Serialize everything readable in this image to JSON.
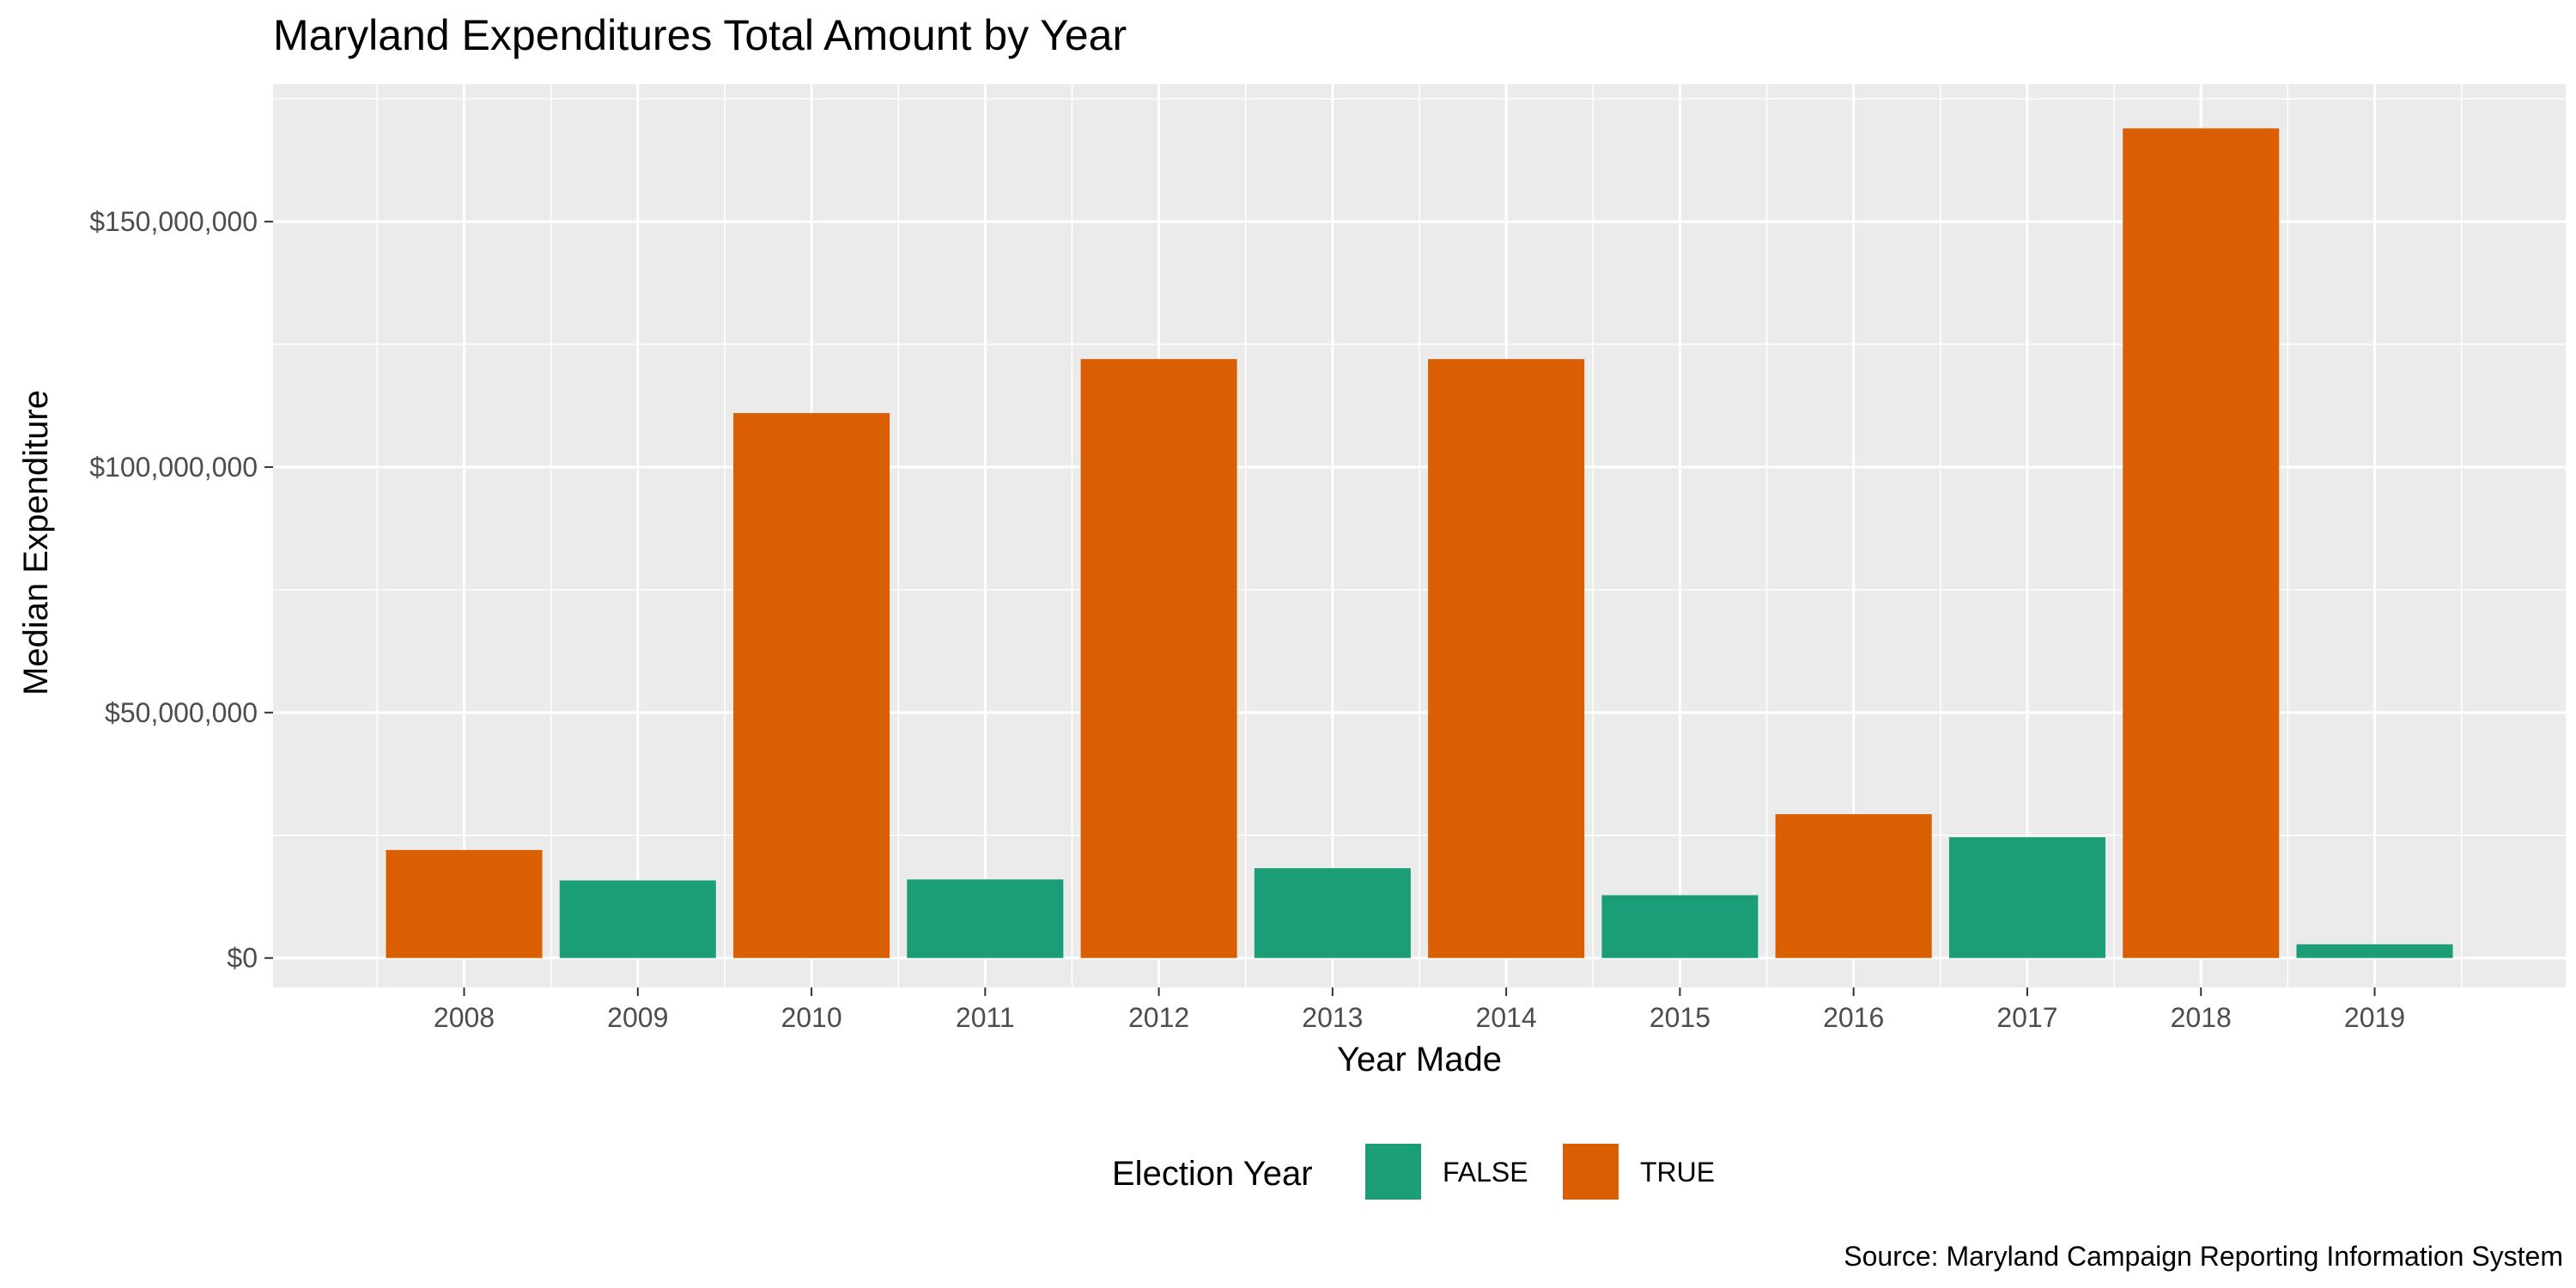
{
  "chart_data": {
    "type": "bar",
    "title": "Maryland Expenditures Total Amount by Year",
    "xlabel": "Year Made",
    "ylabel": "Median Expenditure",
    "caption": "Source: Maryland Campaign Reporting Information System",
    "categories": [
      "2008",
      "2009",
      "2010",
      "2011",
      "2012",
      "2013",
      "2014",
      "2015",
      "2016",
      "2017",
      "2018",
      "2019"
    ],
    "values": [
      22000000,
      15800000,
      111000000,
      16000000,
      122000000,
      18300000,
      122000000,
      12800000,
      29300000,
      24600000,
      169000000,
      2800000
    ],
    "election_year": [
      "TRUE",
      "FALSE",
      "TRUE",
      "FALSE",
      "TRUE",
      "FALSE",
      "TRUE",
      "FALSE",
      "TRUE",
      "FALSE",
      "TRUE",
      "FALSE"
    ],
    "ylim": [
      -6000000,
      178000000
    ],
    "y_ticks": [
      0,
      50000000,
      100000000,
      150000000
    ],
    "y_tick_labels": [
      "$0",
      "$50,000,000",
      "$100,000,000",
      "$150,000,000"
    ],
    "grid": true,
    "legend": {
      "title": "Election Year",
      "placement": "bottom",
      "entries": [
        {
          "label": "FALSE",
          "color": "#1b9e77"
        },
        {
          "label": "TRUE",
          "color": "#d95f02"
        }
      ]
    },
    "colors": {
      "FALSE": "#1b9e77",
      "TRUE": "#d95f02",
      "panel": "#ebebeb",
      "grid": "#ffffff"
    }
  }
}
